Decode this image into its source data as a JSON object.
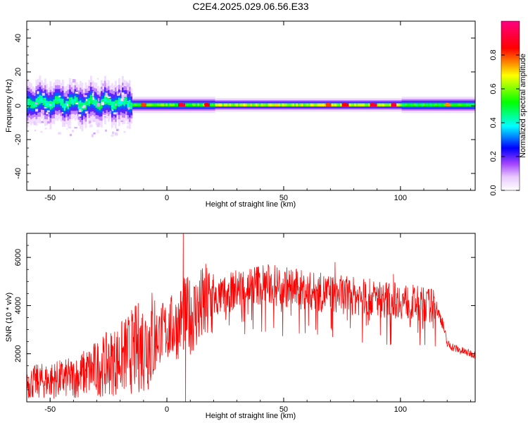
{
  "chart_data": [
    {
      "type": "heatmap",
      "title": "C2E4.2025.029.06.56.E33",
      "xlabel": "Height of straight line (km)",
      "ylabel": "Frequency (Hz)",
      "xlim": [
        -60,
        132
      ],
      "ylim": [
        -50,
        50
      ],
      "x_ticks": [
        -50,
        0,
        50,
        100
      ],
      "y_ticks": [
        -40,
        -20,
        0,
        20,
        40
      ],
      "colorbar": {
        "label": "Normalized spectral amplitude",
        "range": [
          0,
          1
        ],
        "ticks": [
          0.0,
          0.2,
          0.4,
          0.6,
          0.8
        ],
        "colors": [
          "#ffffff",
          "#e0b8ff",
          "#a040ff",
          "#0000ff",
          "#00ffff",
          "#00ff00",
          "#ffff00",
          "#ff0000",
          "#ff0080"
        ]
      },
      "band": {
        "segments": [
          {
            "x": [
              -60,
              -15
            ],
            "center_hz": 1.5,
            "halfwidth_hz": 7,
            "peak_amplitude": 0.5
          },
          {
            "x": [
              -15,
              20
            ],
            "center_hz": 0.5,
            "halfwidth_hz": 3,
            "peak_amplitude": 0.65
          },
          {
            "x": [
              20,
              100
            ],
            "center_hz": 0.5,
            "halfwidth_hz": 2.5,
            "peak_amplitude": 0.75
          },
          {
            "x": [
              100,
              132
            ],
            "center_hz": 0.5,
            "halfwidth_hz": 3,
            "peak_amplitude": 0.6
          }
        ],
        "hotspots": [
          {
            "x": -10,
            "amplitude": 0.8
          },
          {
            "x": 6,
            "amplitude": 0.9
          },
          {
            "x": 17,
            "amplitude": 0.85
          },
          {
            "x": 69,
            "amplitude": 0.8
          },
          {
            "x": 76,
            "amplitude": 0.85
          },
          {
            "x": 88,
            "amplitude": 0.9
          },
          {
            "x": 97,
            "amplitude": 0.9
          },
          {
            "x": 120,
            "amplitude": 0.75
          }
        ]
      }
    },
    {
      "type": "line",
      "xlabel": "Height of straight line (km)",
      "ylabel": "SNR (10 * v/v)",
      "xlim": [
        -60,
        132
      ],
      "ylim": [
        0,
        7000
      ],
      "x_ticks": [
        -50,
        0,
        50,
        100
      ],
      "y_ticks": [
        2000,
        4000,
        6000
      ],
      "color": "#ff0000",
      "trend": {
        "x": [
          -60,
          -50,
          -40,
          -30,
          -20,
          -10,
          0,
          5,
          7,
          10,
          20,
          30,
          40,
          50,
          60,
          70,
          80,
          90,
          100,
          110,
          115,
          118,
          120,
          125,
          132
        ],
        "y": [
          800,
          900,
          1000,
          1400,
          1800,
          2400,
          3000,
          3200,
          3600,
          3600,
          4200,
          4700,
          4900,
          4800,
          4600,
          4500,
          4400,
          4300,
          4200,
          4050,
          4000,
          3300,
          2400,
          2150,
          1950
        ]
      },
      "spikes": [
        {
          "x": 7,
          "y": 7000
        },
        {
          "x": 8,
          "y": 0
        },
        {
          "x": 6,
          "y": 4600
        },
        {
          "x": 72,
          "y": 5800
        },
        {
          "x": 71,
          "y": 2700
        },
        {
          "x": 97,
          "y": 5300
        },
        {
          "x": 96,
          "y": 2400
        }
      ]
    }
  ]
}
